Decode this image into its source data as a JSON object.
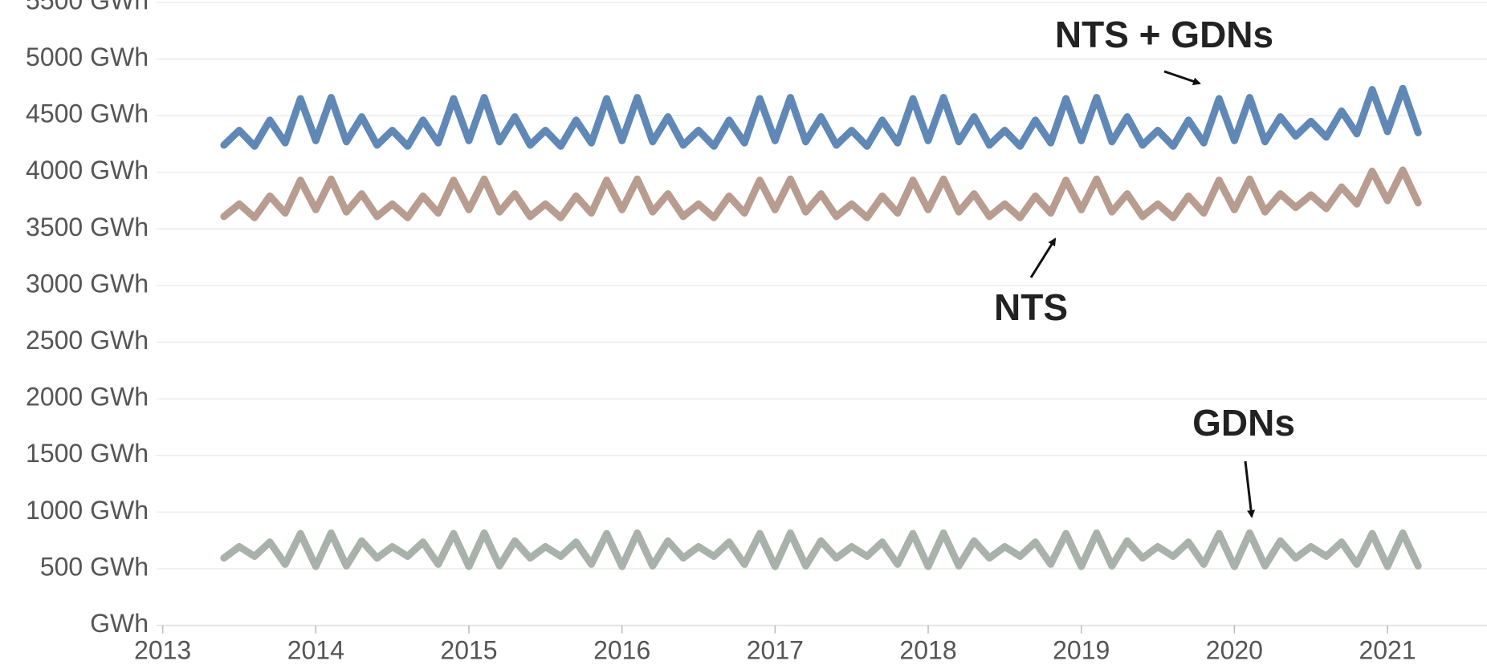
{
  "chart_data": {
    "type": "line",
    "x": [
      2013.4,
      2013.5,
      2013.6,
      2013.7,
      2013.8,
      2013.9,
      2014.0,
      2014.1,
      2014.2,
      2014.3,
      2014.4,
      2014.5,
      2014.6,
      2014.7,
      2014.8,
      2014.9,
      2015.0,
      2015.1,
      2015.2,
      2015.3,
      2015.4,
      2015.5,
      2015.6,
      2015.7,
      2015.8,
      2015.9,
      2016.0,
      2016.1,
      2016.2,
      2016.3,
      2016.4,
      2016.5,
      2016.6,
      2016.7,
      2016.8,
      2016.9,
      2017.0,
      2017.1,
      2017.2,
      2017.3,
      2017.4,
      2017.5,
      2017.6,
      2017.7,
      2017.8,
      2017.9,
      2018.0,
      2018.1,
      2018.2,
      2018.3,
      2018.4,
      2018.5,
      2018.6,
      2018.7,
      2018.8,
      2018.9,
      2019.0,
      2019.1,
      2019.2,
      2019.3,
      2019.4,
      2019.5,
      2019.6,
      2019.7,
      2019.8,
      2019.9,
      2020.0,
      2020.1,
      2020.2,
      2020.3,
      2020.4,
      2020.5,
      2020.6,
      2020.7,
      2020.8,
      2020.9,
      2021.0,
      2021.1,
      2021.2
    ],
    "series": [
      {
        "name": "NTS + GDNs",
        "color": "#6088b6",
        "values": [
          4240,
          4370,
          4230,
          4460,
          4260,
          4650,
          4280,
          4660,
          4270,
          4490,
          4240,
          4370,
          4230,
          4460,
          4260,
          4650,
          4280,
          4660,
          4270,
          4490,
          4240,
          4370,
          4230,
          4460,
          4260,
          4650,
          4280,
          4660,
          4270,
          4490,
          4240,
          4370,
          4230,
          4460,
          4260,
          4650,
          4280,
          4660,
          4270,
          4490,
          4240,
          4370,
          4230,
          4460,
          4260,
          4650,
          4280,
          4660,
          4270,
          4490,
          4240,
          4370,
          4230,
          4460,
          4260,
          4650,
          4280,
          4660,
          4270,
          4490,
          4240,
          4370,
          4230,
          4460,
          4260,
          4650,
          4280,
          4660,
          4270,
          4490,
          4320,
          4450,
          4310,
          4540,
          4340,
          4730,
          4360,
          4740,
          4350
        ]
      },
      {
        "name": "NTS",
        "color": "#b99c90",
        "values": [
          3610,
          3720,
          3600,
          3790,
          3640,
          3930,
          3670,
          3940,
          3650,
          3810,
          3610,
          3720,
          3600,
          3790,
          3640,
          3930,
          3670,
          3940,
          3650,
          3810,
          3610,
          3720,
          3600,
          3790,
          3640,
          3930,
          3670,
          3940,
          3650,
          3810,
          3610,
          3720,
          3600,
          3790,
          3640,
          3930,
          3670,
          3940,
          3650,
          3810,
          3610,
          3720,
          3600,
          3790,
          3640,
          3930,
          3670,
          3940,
          3650,
          3810,
          3610,
          3720,
          3600,
          3790,
          3640,
          3930,
          3670,
          3940,
          3650,
          3810,
          3610,
          3720,
          3600,
          3790,
          3640,
          3930,
          3670,
          3940,
          3650,
          3810,
          3690,
          3800,
          3680,
          3870,
          3720,
          4010,
          3750,
          4020,
          3730
        ]
      },
      {
        "name": "GDNs",
        "color": "#a8b2aa",
        "values": [
          595,
          695,
          610,
          735,
          540,
          810,
          520,
          815,
          525,
          745,
          595,
          695,
          610,
          735,
          540,
          810,
          520,
          815,
          525,
          745,
          595,
          695,
          610,
          735,
          540,
          810,
          520,
          815,
          525,
          745,
          595,
          695,
          610,
          735,
          540,
          810,
          520,
          815,
          525,
          745,
          595,
          695,
          610,
          735,
          540,
          810,
          520,
          815,
          525,
          745,
          595,
          695,
          610,
          735,
          540,
          810,
          520,
          815,
          525,
          745,
          595,
          695,
          610,
          735,
          540,
          810,
          520,
          815,
          525,
          745,
          595,
          695,
          610,
          735,
          540,
          810,
          520,
          815,
          525
        ]
      }
    ],
    "xlim": [
      2012.96,
      2021.65
    ],
    "xticks": [
      2013,
      2014,
      2015,
      2016,
      2017,
      2018,
      2019,
      2020,
      2021
    ],
    "ylim": [
      0,
      5490
    ],
    "yticks": [
      {
        "value": 0,
        "label": "GWh"
      },
      {
        "value": 500,
        "label": "500 GWh"
      },
      {
        "value": 1000,
        "label": "1000 GWh"
      },
      {
        "value": 1500,
        "label": "1500 GWh"
      },
      {
        "value": 2000,
        "label": "2000 GWh"
      },
      {
        "value": 2500,
        "label": "2500 GWh"
      },
      {
        "value": 3000,
        "label": "3000 GWh"
      },
      {
        "value": 3500,
        "label": "3500 GWh"
      },
      {
        "value": 4000,
        "label": "4000 GWh"
      },
      {
        "value": 4500,
        "label": "4500 GWh"
      },
      {
        "value": 5000,
        "label": "5000 GWh"
      },
      {
        "value": 5500,
        "label": "5500 GWh"
      }
    ],
    "grid": true,
    "annotations": [
      "NTS + GDNs",
      "NTS",
      "GDNs"
    ]
  }
}
